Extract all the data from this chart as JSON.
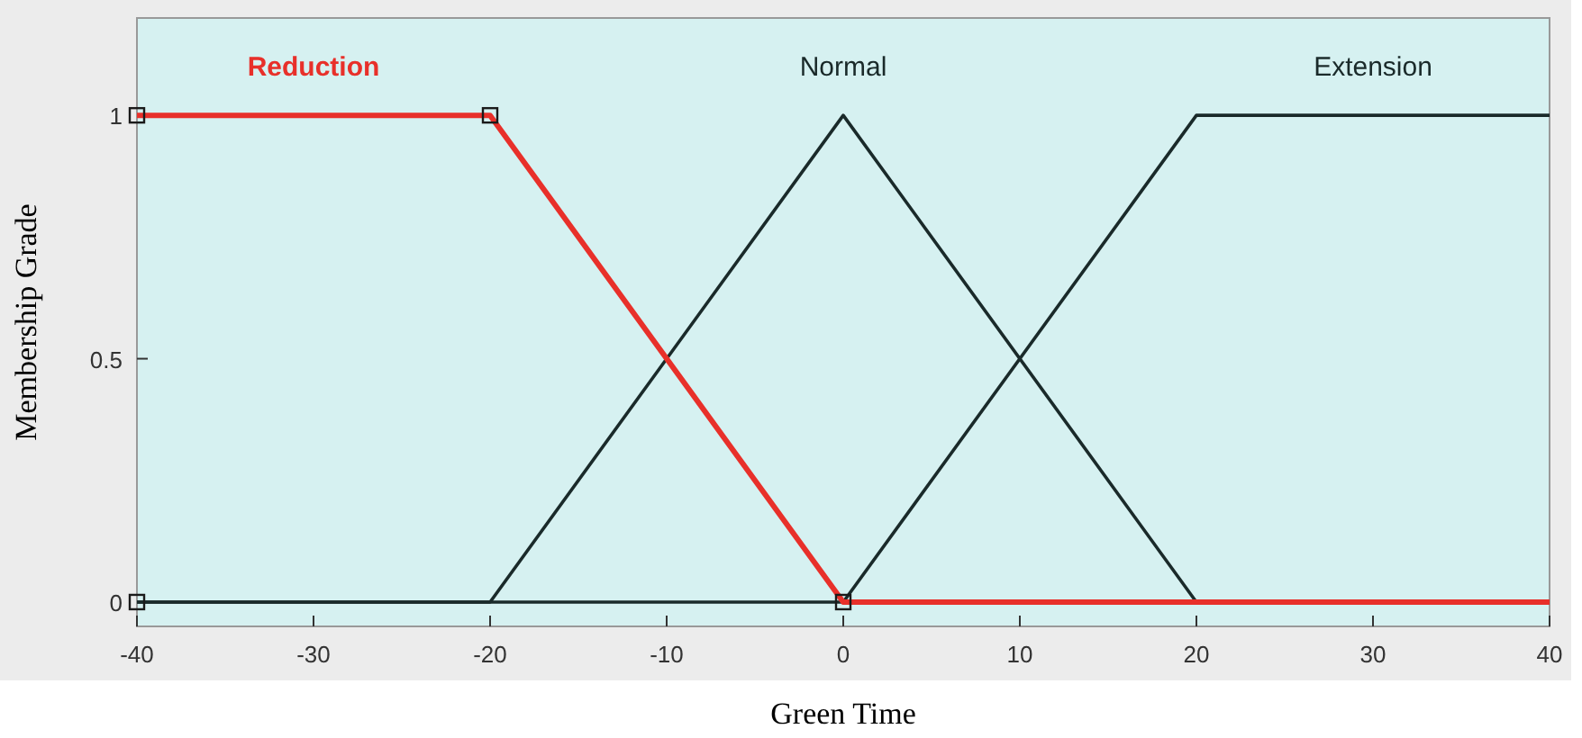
{
  "chart_data": {
    "type": "line",
    "xlabel": "Green Time",
    "ylabel": "Membership Grade",
    "xlim": [
      -40,
      40
    ],
    "xticks": [
      -40,
      -30,
      -20,
      -10,
      0,
      10,
      20,
      30,
      40
    ],
    "ylim": [
      -0.05,
      1.2
    ],
    "yticks": [
      0,
      0.5,
      1
    ],
    "grid": false,
    "marker": "none",
    "line_style": "solid",
    "series": [
      {
        "name": "Normal",
        "color": "#1a2a2a",
        "x": [
          -40,
          -20,
          0,
          20,
          40
        ],
        "values": [
          0,
          0,
          1,
          0,
          0
        ]
      },
      {
        "name": "Extension",
        "color": "#1a2a2a",
        "x": [
          -40,
          0,
          20,
          40
        ],
        "values": [
          0,
          0,
          1,
          1
        ]
      },
      {
        "name": "Reduction",
        "color": "#e8302a",
        "x": [
          -40,
          -20,
          0,
          40
        ],
        "values": [
          1,
          1,
          0,
          0
        ]
      },
      {
        "type": "scatter",
        "marker": "square",
        "color": "#1a1a1a",
        "x": [
          -40,
          -40,
          -20,
          0
        ],
        "values": [
          0,
          1,
          1,
          0
        ]
      }
    ]
  }
}
